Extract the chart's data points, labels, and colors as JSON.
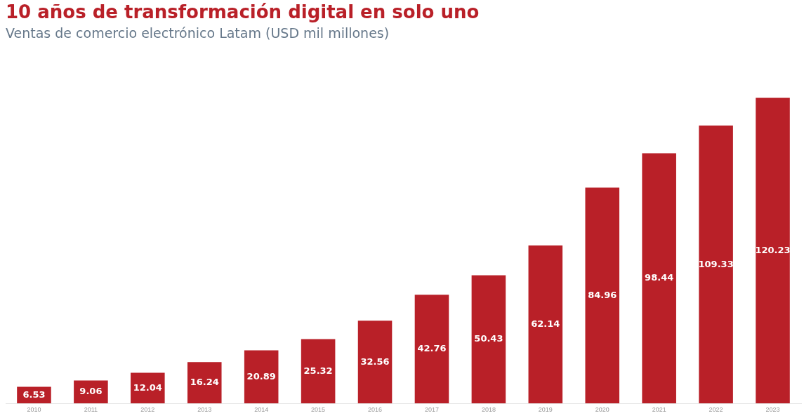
{
  "chart_data": {
    "type": "bar",
    "title": "10 años de transformación digital en solo uno",
    "subtitle": "Ventas de comercio electrónico Latam (USD mil millones)",
    "categories": [
      "2010",
      "2011",
      "2012",
      "2013",
      "2014",
      "2015",
      "2016",
      "2017",
      "2018",
      "2019",
      "2020",
      "2021",
      "2022",
      "2023"
    ],
    "values": [
      6.53,
      9.06,
      12.04,
      16.24,
      20.89,
      25.32,
      32.56,
      42.76,
      50.43,
      62.14,
      84.96,
      98.44,
      109.33,
      120.23
    ],
    "color": "#b92028",
    "data_labels": true,
    "grid": false,
    "legend": false
  }
}
